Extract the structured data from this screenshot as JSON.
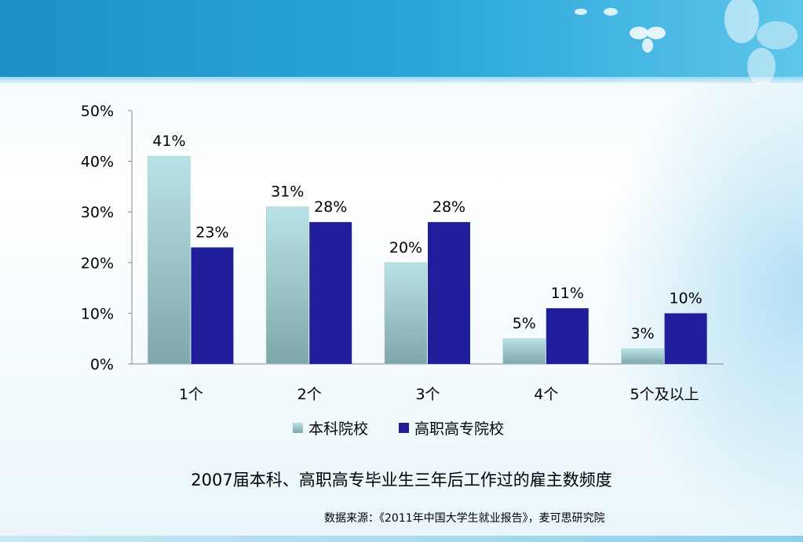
{
  "chart_data": {
    "type": "bar",
    "title": "2007届本科、高职高专毕业生三年后工作过的雇主数频度",
    "categories": [
      "1个",
      "2个",
      "3个",
      "4个",
      "5个及以上"
    ],
    "series": [
      {
        "name": "本科院校",
        "values": [
          41,
          31,
          20,
          5,
          3
        ],
        "labels": [
          "41%",
          "31%",
          "20%",
          "5%",
          "3%"
        ]
      },
      {
        "name": "高职高专院校",
        "values": [
          23,
          28,
          28,
          11,
          10
        ],
        "labels": [
          "23%",
          "28%",
          "28%",
          "11%",
          "10%"
        ]
      }
    ],
    "yticks": [
      "0%",
      "10%",
      "20%",
      "30%",
      "40%",
      "50%"
    ],
    "ylim": [
      0,
      50
    ],
    "grid": false,
    "legend_position": "bottom"
  },
  "colors": {
    "series1_top": "#b8e3e6",
    "series1_bottom": "#7fa7aa",
    "series2": "#211e9c",
    "axis": "#888888"
  },
  "footer": {
    "source": "数据来源：《2011年中国大学生就业报告》，麦可思研究院"
  }
}
